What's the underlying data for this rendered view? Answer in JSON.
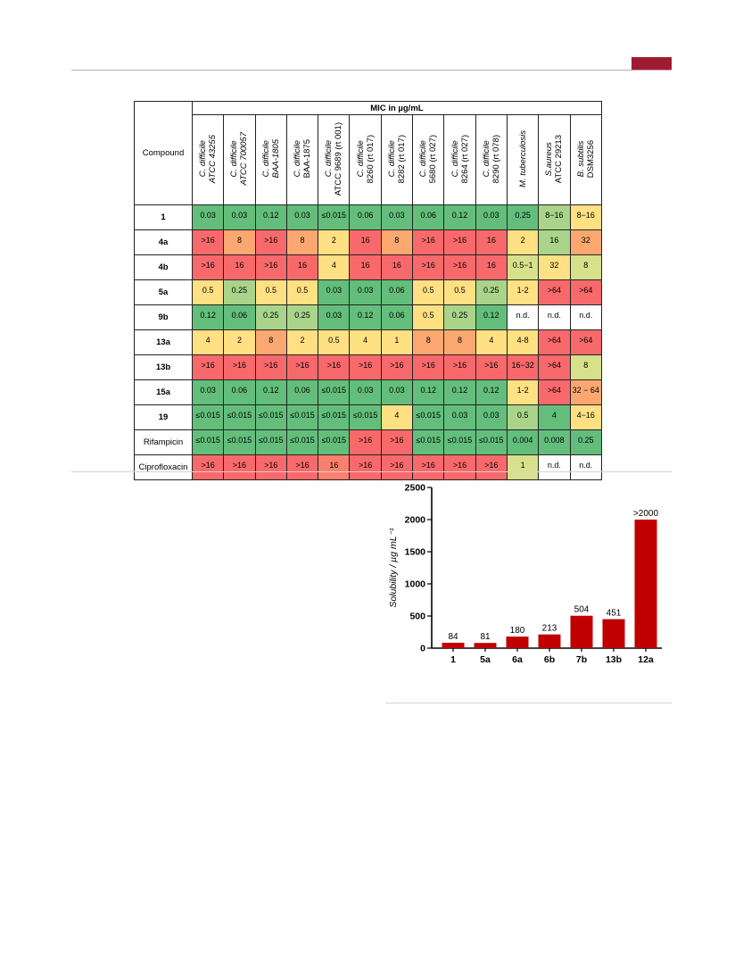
{
  "table": {
    "compound_header": "Compound",
    "mic_header": "MIC in µg/mL",
    "organisms": [
      {
        "species": "C. difficile",
        "strain": "ATCC 43255",
        "strain_italic": true
      },
      {
        "species": "C. difficile",
        "strain": "ATCC 700057",
        "strain_italic": true
      },
      {
        "species": "C. difficile",
        "strain": "BAA-1805",
        "strain_italic": true
      },
      {
        "species": "C. difficile",
        "strain": "BAA-1875",
        "strain_italic": false
      },
      {
        "species": "C. difficile",
        "strain": "ATCC 9689 (rt 001)",
        "strain_italic": false
      },
      {
        "species": "C. difficile",
        "strain": "8260 (rt 017)",
        "strain_italic": false
      },
      {
        "species": "C. difficile",
        "strain": "8282 (rt 017)",
        "strain_italic": false
      },
      {
        "species": "C. difficile",
        "strain": "5680 (rt 027)",
        "strain_italic": false
      },
      {
        "species": "C. difficile",
        "strain": "8264 (rt 027)",
        "strain_italic": false
      },
      {
        "species": "C. difficile",
        "strain": "8290 (rt 078)",
        "strain_italic": false
      },
      {
        "species": "M. tuberculosis",
        "strain": "",
        "strain_italic": false
      },
      {
        "species": "S.aureus",
        "strain": "ATCC 29213",
        "strain_italic": false
      },
      {
        "species": "B. subtilis",
        "strain": "DSM3256",
        "strain_italic": false
      }
    ],
    "palette": {
      "G": "#63be7b",
      "LG": "#a9d48a",
      "Y": "#ffe083",
      "LY": "#d7e18b",
      "O": "#fba870",
      "R": "#f8696b",
      "RO": "#f9806d",
      "W": "#ffffff"
    },
    "rows": [
      {
        "name": "1",
        "bold": true,
        "values": [
          "0.03",
          "0.03",
          "0.12",
          "0.03",
          "≤0.015",
          "0.06",
          "0.03",
          "0.06",
          "0.12",
          "0.03",
          "0.25",
          "8−16",
          "8−16"
        ],
        "colors": [
          "G",
          "G",
          "G",
          "G",
          "G",
          "G",
          "G",
          "G",
          "G",
          "G",
          "G",
          "LG",
          "Y"
        ]
      },
      {
        "name": "4a",
        "bold": true,
        "values": [
          ">16",
          "8",
          ">16",
          "8",
          "2",
          "16",
          "8",
          ">16",
          ">16",
          "16",
          "2",
          "16",
          "32"
        ],
        "colors": [
          "R",
          "O",
          "R",
          "O",
          "Y",
          "R",
          "O",
          "R",
          "R",
          "R",
          "Y",
          "LG",
          "O"
        ]
      },
      {
        "name": "4b",
        "bold": true,
        "values": [
          ">16",
          "16",
          ">16",
          "16",
          "4",
          "16",
          "16",
          ">16",
          ">16",
          "16",
          "0.5−1",
          "32",
          "8"
        ],
        "colors": [
          "R",
          "R",
          "R",
          "R",
          "Y",
          "R",
          "R",
          "R",
          "R",
          "R",
          "LY",
          "Y",
          "LY"
        ]
      },
      {
        "name": "5a",
        "bold": true,
        "values": [
          "0.5",
          "0.25",
          "0.5",
          "0.5",
          "0.03",
          "0.03",
          "0.06",
          "0.5",
          "0.5",
          "0.25",
          "1-2",
          ">64",
          ">64"
        ],
        "colors": [
          "Y",
          "LG",
          "Y",
          "Y",
          "G",
          "G",
          "G",
          "Y",
          "Y",
          "LG",
          "Y",
          "R",
          "R"
        ]
      },
      {
        "name": "9b",
        "bold": true,
        "values": [
          "0.12",
          "0.06",
          "0.25",
          "0.25",
          "0.03",
          "0.12",
          "0.06",
          "0.5",
          "0.25",
          "0.12",
          "n.d.",
          "n.d.",
          "n.d."
        ],
        "colors": [
          "G",
          "G",
          "LG",
          "LG",
          "G",
          "G",
          "G",
          "Y",
          "LG",
          "G",
          "W",
          "W",
          "W"
        ]
      },
      {
        "name": "13a",
        "bold": true,
        "values": [
          "4",
          "2",
          "8",
          "2",
          "0.5",
          "4",
          "1",
          "8",
          "8",
          "4",
          "4-8",
          ">64",
          ">64"
        ],
        "colors": [
          "Y",
          "Y",
          "O",
          "Y",
          "Y",
          "Y",
          "Y",
          "O",
          "O",
          "Y",
          "Y",
          "R",
          "R"
        ]
      },
      {
        "name": "13b",
        "bold": true,
        "values": [
          ">16",
          ">16",
          ">16",
          ">16",
          ">16",
          ">16",
          ">16",
          ">16",
          ">16",
          ">16",
          "16−32",
          ">64",
          "8"
        ],
        "colors": [
          "R",
          "R",
          "R",
          "R",
          "R",
          "R",
          "R",
          "R",
          "R",
          "R",
          "R",
          "R",
          "LY"
        ]
      },
      {
        "name": "15a",
        "bold": true,
        "values": [
          "0.03",
          "0.06",
          "0.12",
          "0.06",
          "≤0.015",
          "0.03",
          "0.03",
          "0.12",
          "0.12",
          "0.12",
          "1-2",
          ">64",
          "32 − 64"
        ],
        "colors": [
          "G",
          "G",
          "G",
          "G",
          "G",
          "G",
          "G",
          "G",
          "G",
          "G",
          "Y",
          "R",
          "O"
        ]
      },
      {
        "name": "19",
        "bold": true,
        "values": [
          "≤0.015",
          "≤0.015",
          "≤0.015",
          "≤0.015",
          "≤0.015",
          "≤0.015",
          "4",
          "≤0.015",
          "0.03",
          "0.03",
          "0.5",
          "4",
          "4−16"
        ],
        "colors": [
          "G",
          "G",
          "G",
          "G",
          "G",
          "G",
          "Y",
          "G",
          "G",
          "G",
          "LG",
          "G",
          "Y"
        ]
      },
      {
        "name": "Rifampicin",
        "bold": false,
        "values": [
          "≤0.015",
          "≤0.015",
          "≤0.015",
          "≤0.015",
          "≤0.015",
          ">16",
          ">16",
          "≤0.015",
          "≤0.015",
          "≤0.015",
          "0.004",
          "0.008",
          "0.25"
        ],
        "colors": [
          "G",
          "G",
          "G",
          "G",
          "G",
          "R",
          "R",
          "G",
          "G",
          "G",
          "G",
          "G",
          "G"
        ]
      },
      {
        "name": "Ciprofloxacin",
        "bold": false,
        "values": [
          ">16",
          ">16",
          ">16",
          ">16",
          "16",
          ">16",
          ">16",
          ">16",
          ">16",
          ">16",
          "1",
          "n.d.",
          "n.d."
        ],
        "colors": [
          "R",
          "R",
          "R",
          "R",
          "RO",
          "R",
          "R",
          "R",
          "R",
          "R",
          "LY",
          "W",
          "W"
        ]
      }
    ]
  },
  "chart_data": {
    "type": "bar",
    "categories": [
      "1",
      "5a",
      "6a",
      "6b",
      "7b",
      "13b",
      "12a"
    ],
    "values": [
      84,
      81,
      180,
      213,
      504,
      451,
      2000
    ],
    "data_labels": [
      "84",
      "81",
      "180",
      "213",
      "504",
      "451",
      ">2000"
    ],
    "ylabel": "Solubility / µg mL⁻¹",
    "ylim": [
      0,
      2500
    ],
    "yticks": [
      0,
      500,
      1000,
      1500,
      2000,
      2500
    ],
    "bar_color": "#c00000",
    "grid": false
  }
}
